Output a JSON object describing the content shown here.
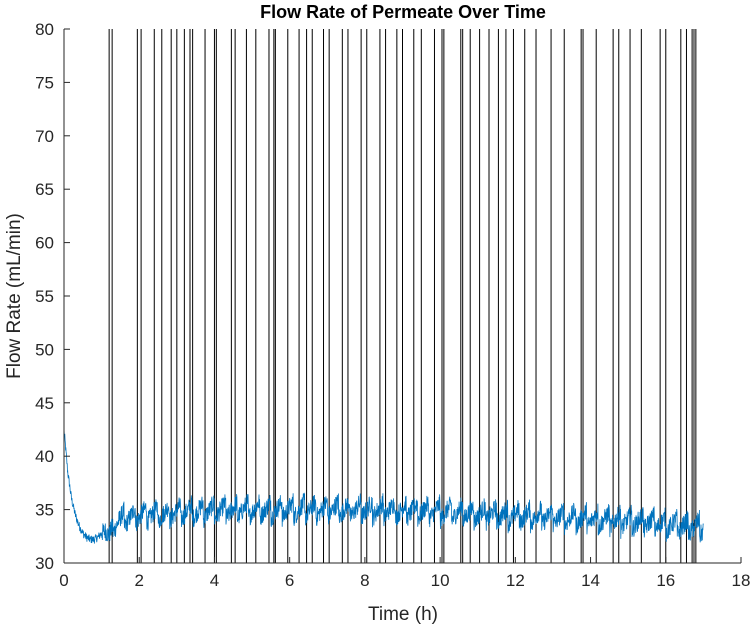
{
  "chart_data": {
    "type": "line",
    "title": "Flow Rate of Permeate Over Time",
    "xlabel": "Time (h)",
    "ylabel": "Flow Rate (mL/min)",
    "xlim": [
      0,
      18
    ],
    "ylim": [
      30,
      80
    ],
    "xticks": [
      0,
      2,
      4,
      6,
      8,
      10,
      12,
      14,
      16,
      18
    ],
    "yticks": [
      30,
      35,
      40,
      45,
      50,
      55,
      60,
      65,
      70,
      75,
      80
    ],
    "grid": false,
    "line_color": "#0072BD",
    "spike_color": "#000000",
    "series": [
      {
        "x": [
          0,
          0.1,
          0.2,
          0.3,
          0.4,
          0.5,
          0.6,
          0.7,
          0.8,
          0.9,
          1.0,
          1.1,
          1.2,
          1.3,
          1.5,
          1.8,
          2.0,
          2.5,
          3.0,
          3.5,
          4.0,
          4.5,
          5.0,
          5.5,
          6.0,
          6.5,
          7.0,
          7.5,
          8.0,
          8.5,
          9.0,
          9.5,
          10.0,
          10.5,
          11.0,
          11.5,
          12.0,
          12.5,
          13.0,
          13.5,
          14.0,
          14.5,
          15.0,
          15.5,
          16.0,
          16.5,
          17.0
        ],
        "values": [
          42.5,
          38.5,
          36.0,
          34.5,
          33.5,
          32.8,
          32.4,
          32.2,
          32.2,
          32.4,
          32.8,
          33.0,
          32.6,
          33.6,
          34.0,
          34.3,
          34.5,
          34.6,
          34.7,
          34.8,
          34.9,
          34.9,
          35.0,
          35.0,
          35.0,
          35.0,
          35.0,
          35.0,
          35.0,
          35.0,
          34.9,
          34.9,
          34.8,
          34.7,
          34.6,
          34.5,
          34.4,
          34.4,
          34.3,
          34.2,
          34.1,
          34.0,
          33.9,
          33.8,
          33.6,
          33.4,
          33.3
        ]
      }
    ],
    "spikes_x": [
      1.2,
      1.28,
      1.95,
      2.05,
      2.4,
      2.6,
      2.85,
      3.0,
      3.2,
      3.35,
      3.42,
      3.75,
      4.0,
      4.05,
      4.45,
      4.55,
      4.85,
      5.1,
      5.45,
      5.58,
      5.62,
      5.95,
      6.25,
      6.45,
      6.6,
      6.9,
      7.05,
      7.4,
      7.55,
      7.9,
      8.05,
      8.4,
      8.55,
      8.85,
      9.0,
      9.3,
      9.5,
      9.85,
      10.05,
      10.1,
      10.55,
      10.6,
      10.8,
      11.05,
      11.3,
      11.55,
      11.75,
      11.95,
      12.25,
      12.55,
      12.95,
      13.3,
      13.75,
      13.8,
      14.15,
      14.6,
      14.75,
      15.05,
      15.35,
      15.85,
      16.0,
      16.4,
      16.55,
      16.7,
      16.75,
      16.8
    ]
  }
}
